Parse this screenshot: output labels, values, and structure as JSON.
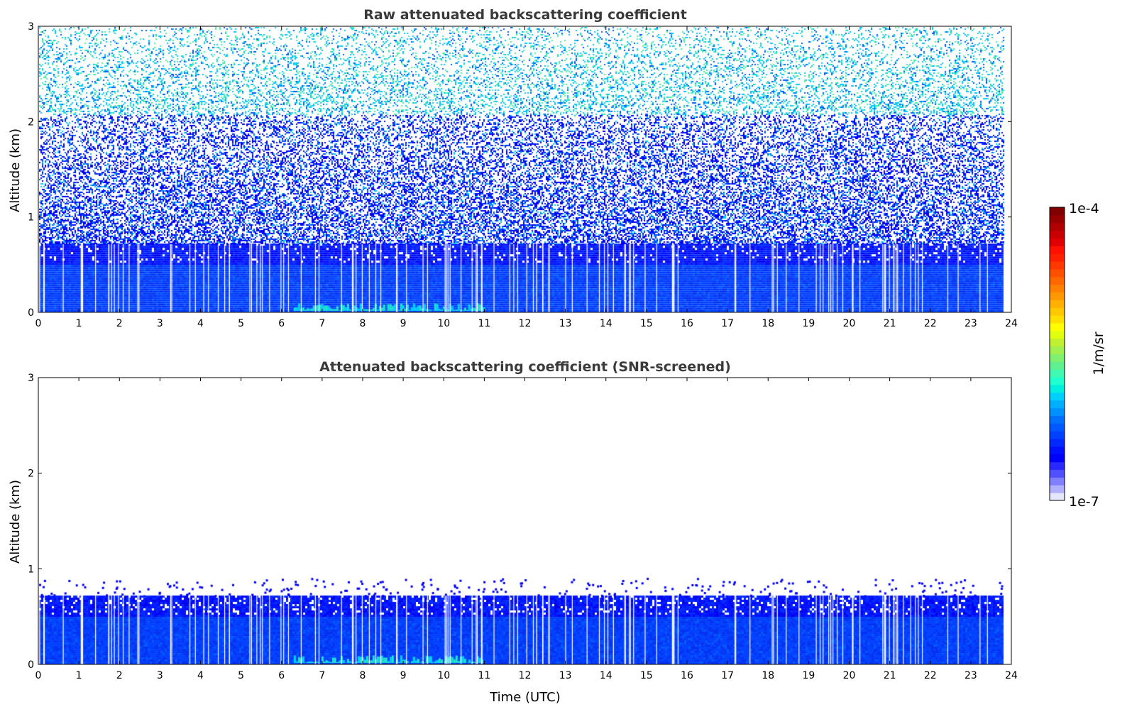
{
  "chart_data": [
    {
      "type": "heatmap",
      "title": "Raw attenuated backscattering coefficient",
      "xlabel": "",
      "ylabel": "Altitude (km)",
      "xlim": [
        0,
        24
      ],
      "ylim": [
        0,
        3
      ],
      "xticks": [
        "0",
        "1",
        "2",
        "3",
        "4",
        "5",
        "6",
        "7",
        "8",
        "9",
        "10",
        "11",
        "12",
        "13",
        "14",
        "15",
        "16",
        "17",
        "18",
        "19",
        "20",
        "21",
        "22",
        "23",
        "24"
      ],
      "yticks": [
        "0",
        "1",
        "2",
        "3"
      ],
      "data_end_hour": 23.8,
      "layers": [
        {
          "name": "boundary layer",
          "x_start": 0,
          "x_end": 23.8,
          "alt_bottom": 0,
          "alt_top": 0.72,
          "value": 1.5e-06
        },
        {
          "name": "enhanced near-surface aerosol",
          "x_start": 6.3,
          "x_end": 11.0,
          "alt_bottom": 0,
          "alt_top": 0.08,
          "value": 5e-06
        }
      ],
      "noise": {
        "alt_bottom": 0.72,
        "alt_top": 3.0,
        "density_low": 0.55,
        "density_high": 0.35
      }
    },
    {
      "type": "heatmap",
      "title": "Attenuated backscattering coefficient (SNR-screened)",
      "xlabel": "Time (UTC)",
      "ylabel": "Altitude (km)",
      "xlim": [
        0,
        24
      ],
      "ylim": [
        0,
        3
      ],
      "xticks": [
        "0",
        "1",
        "2",
        "3",
        "4",
        "5",
        "6",
        "7",
        "8",
        "9",
        "10",
        "11",
        "12",
        "13",
        "14",
        "15",
        "16",
        "17",
        "18",
        "19",
        "20",
        "21",
        "22",
        "23",
        "24"
      ],
      "yticks": [
        "0",
        "1",
        "2",
        "3"
      ],
      "data_end_hour": 23.8,
      "layers": [
        {
          "name": "boundary layer",
          "x_start": 0,
          "x_end": 23.8,
          "alt_bottom": 0,
          "alt_top": 0.72,
          "value": 1.5e-06
        },
        {
          "name": "enhanced near-surface aerosol",
          "x_start": 6.3,
          "x_end": 11.0,
          "alt_bottom": 0,
          "alt_top": 0.08,
          "value": 5e-06
        }
      ]
    }
  ],
  "colorbar": {
    "label": "1/m/sr",
    "min_label": "1e-7",
    "max_label": "1e-4",
    "colors": [
      "#e6e6fa",
      "#b0b0ff",
      "#8080ff",
      "#5050ff",
      "#2828ff",
      "#0000ff",
      "#0010ff",
      "#0028ff",
      "#0040ff",
      "#0058ff",
      "#0070ff",
      "#0090ff",
      "#00b0ff",
      "#00d0ff",
      "#00eedd",
      "#20ffd0",
      "#40f8b0",
      "#60f090",
      "#80f070",
      "#a0f050",
      "#c0f030",
      "#e0ff10",
      "#ffff00",
      "#ffe000",
      "#ffc800",
      "#ffb000",
      "#ff9800",
      "#ff8000",
      "#ff6800",
      "#ff5000",
      "#ff3800",
      "#ff2000",
      "#ff1000",
      "#e00000",
      "#c80000",
      "#b00000",
      "#980000",
      "#800000"
    ]
  }
}
